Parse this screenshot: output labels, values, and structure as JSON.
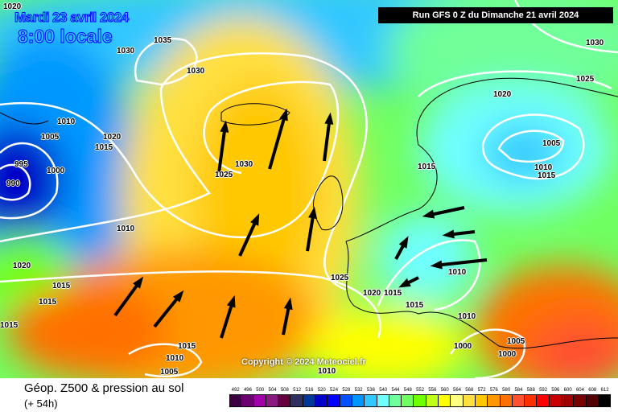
{
  "header": {
    "date": "Mardi 23 avril 2024",
    "time": "8:00 locale",
    "run": "Run GFS 0 Z du Dimanche 21 avril 2024"
  },
  "copyright": "Copyright © 2024 Meteociel.fr",
  "footer": {
    "title": "Géop. Z500 & pression au sol",
    "lead": "(+ 54h)"
  },
  "isobar_labels": [
    "1020",
    "1035",
    "1030",
    "1030",
    "1030",
    "1025",
    "1020",
    "1010",
    "1005",
    "1020",
    "1015",
    "995",
    "1000",
    "990",
    "1025",
    "1030",
    "1015",
    "1005",
    "1010",
    "1015",
    "1010",
    "1020",
    "1015",
    "1015",
    "1015",
    "1025",
    "1010",
    "1020",
    "1015",
    "1015",
    "1010",
    "1015",
    "1010",
    "1005",
    "1000",
    "1000",
    "1005",
    "1010"
  ],
  "legend": {
    "labels": [
      "492",
      "496",
      "500",
      "504",
      "508",
      "512",
      "516",
      "520",
      "524",
      "528",
      "532",
      "536",
      "540",
      "544",
      "548",
      "552",
      "556",
      "560",
      "564",
      "568",
      "572",
      "576",
      "580",
      "584",
      "588",
      "592",
      "596",
      "600",
      "604",
      "608",
      "612"
    ],
    "colors": [
      "#3d0040",
      "#6b0070",
      "#a000a8",
      "#8a1a80",
      "#640040",
      "#303060",
      "#003898",
      "#0000c8",
      "#0000ff",
      "#0050ff",
      "#0098ff",
      "#30c8ff",
      "#70ffff",
      "#70ff98",
      "#70ff60",
      "#70ff00",
      "#c0ff18",
      "#ffff00",
      "#ffff80",
      "#ffe040",
      "#ffc800",
      "#ff9800",
      "#ff7000",
      "#ff5030",
      "#ff3000",
      "#ff0000",
      "#c80000",
      "#a00000",
      "#780000",
      "#500000",
      "#000000"
    ]
  },
  "map_colors": {
    "isobar": "#ffffff",
    "arrow": "#000000",
    "coast": "#000000"
  }
}
